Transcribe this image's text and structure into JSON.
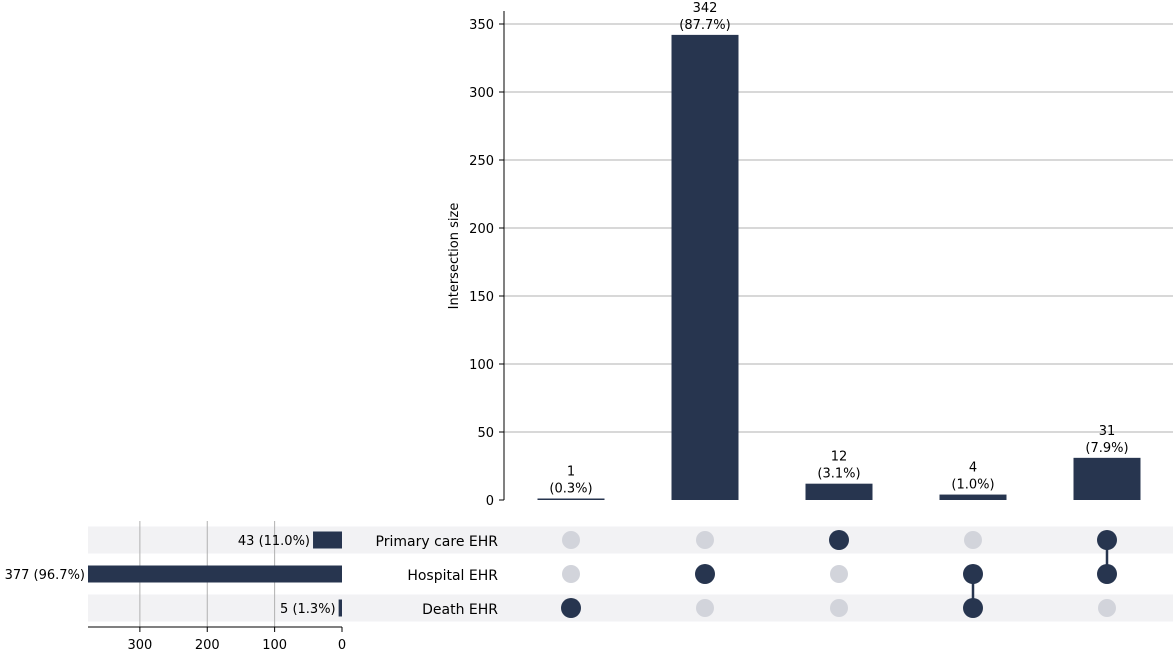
{
  "colors": {
    "bar": "#27354f",
    "dot_active": "#27354f",
    "dot_inactive": "#d2d4db",
    "row_shade": "#f2f2f4",
    "grid": "#b0b0b0"
  },
  "chart_data": {
    "type": "upset",
    "intersections": {
      "type": "bar",
      "ylabel": "Intersection size",
      "ylim": [
        0,
        360
      ],
      "yticks": [
        0,
        50,
        100,
        150,
        200,
        250,
        300,
        350
      ],
      "ytick_labels": [
        "0",
        "50",
        "100",
        "150",
        "200",
        "250",
        "300",
        "350"
      ],
      "grid": true,
      "values": [
        1,
        342,
        12,
        4,
        31
      ],
      "labels": [
        {
          "count": "1",
          "pct": "(0.3%)"
        },
        {
          "count": "342",
          "pct": "(87.7%)"
        },
        {
          "count": "12",
          "pct": "(3.1%)"
        },
        {
          "count": "4",
          "pct": "(1.0%)"
        },
        {
          "count": "31",
          "pct": "(7.9%)"
        }
      ],
      "membership": [
        [
          false,
          false,
          true
        ],
        [
          false,
          true,
          false
        ],
        [
          true,
          false,
          false
        ],
        [
          false,
          true,
          true
        ],
        [
          true,
          true,
          false
        ]
      ]
    },
    "sets": {
      "type": "bar",
      "orientation": "horizontal",
      "names": [
        "Primary care EHR",
        "Hospital EHR",
        "Death EHR"
      ],
      "values": [
        43,
        377,
        5
      ],
      "labels": [
        "43 (11.0%)",
        "377 (96.7%)",
        "5 (1.3%)"
      ],
      "xlim": [
        377,
        0
      ],
      "xticks": [
        300,
        200,
        100,
        0
      ],
      "xtick_labels": [
        "300",
        "200",
        "100",
        "0"
      ]
    }
  }
}
